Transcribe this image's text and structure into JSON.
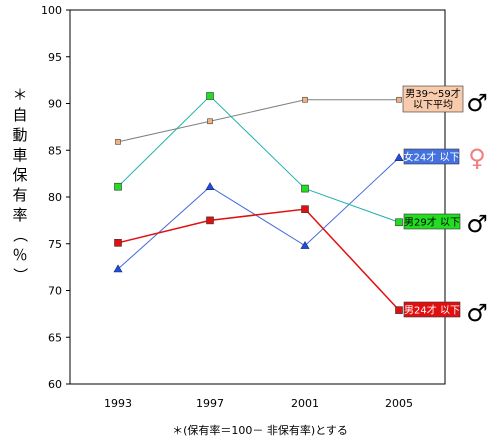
{
  "chart_data": {
    "type": "line",
    "x": [
      "1993",
      "1997",
      "2001",
      "2005"
    ],
    "ylim": [
      60,
      100
    ],
    "yticks": [
      60,
      65,
      70,
      75,
      80,
      85,
      90,
      95,
      100
    ],
    "ylabel": "＊自動車保有率（％）",
    "footnote": "＊(保有率＝100－ 非保有率)とする",
    "grid": false,
    "series": [
      {
        "name": "男39～59才以下平均",
        "label_lines": [
          "男39～59才",
          "以下平均"
        ],
        "values": [
          85.9,
          88.1,
          90.4,
          90.4
        ],
        "color": "#808080",
        "marker": "square-small",
        "marker_color": "#f4b183",
        "label_bg": "#f8cbad",
        "label_fg": "#000000",
        "symbol": "♂",
        "symbol_color": "#000000"
      },
      {
        "name": "女24才以下",
        "label_lines": [
          "女24才 以下"
        ],
        "values": [
          72.3,
          81.1,
          74.8,
          84.2
        ],
        "color": "#4169e1",
        "marker": "triangle",
        "marker_color": "#1f4ed8",
        "label_bg": "#4472e0",
        "label_fg": "#ffffff",
        "symbol": "♀",
        "symbol_color": "#f08080"
      },
      {
        "name": "男29才以下",
        "label_lines": [
          "男29才 以下"
        ],
        "values": [
          81.1,
          90.8,
          80.9,
          77.3
        ],
        "color": "#20b2aa",
        "marker": "square",
        "marker_color": "#22dd22",
        "label_bg": "#22dd22",
        "label_fg": "#000000",
        "symbol": "♂",
        "symbol_color": "#000000"
      },
      {
        "name": "男24才以下",
        "label_lines": [
          "男24才 以下"
        ],
        "values": [
          75.1,
          77.5,
          78.7,
          67.9
        ],
        "color": "#e01010",
        "marker": "square",
        "marker_color": "#e01010",
        "label_bg": "#e01010",
        "label_fg": "#ffffff",
        "symbol": "♂",
        "symbol_color": "#000000"
      }
    ]
  }
}
